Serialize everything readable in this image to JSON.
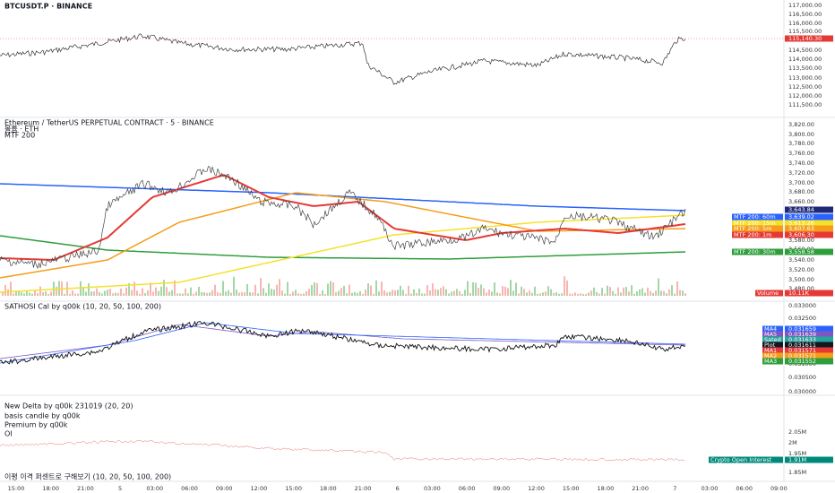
{
  "btc": {
    "title": "BTCUSDT.P · BINANCE",
    "axis": [
      "117,000.00",
      "116,500.00",
      "116,000.00",
      "115,500.00",
      "114,500.00",
      "114,000.00",
      "113,500.00",
      "113,000.00",
      "112,500.00",
      "112,000.00",
      "111,500.00"
    ],
    "price": "115,140.30"
  },
  "eth": {
    "title": "Ethereum / TetherUS PERPETUAL CONTRACT · 5 · BINANCE",
    "subtitle": "볼륨 · ETH",
    "indicator": "MTF 200",
    "axis": [
      "3,820.00",
      "3,800.00",
      "3,780.00",
      "3,760.00",
      "3,740.00",
      "3,720.00",
      "3,700.00",
      "3,680.00",
      "3,660.00",
      "3,580.00",
      "3,560.00",
      "3,540.00",
      "3,520.00",
      "3,500.00",
      "3,480.00"
    ],
    "price": "3,643.84",
    "tags": [
      {
        "label": "MTF 200: 60m",
        "value": "3,639.02",
        "color": "#2962ff"
      },
      {
        "label": "MTF 200: 15m",
        "value": "3,613.26",
        "color": "#f5e12a"
      },
      {
        "label": "MTF 200: 5m",
        "value": "3,607.63",
        "color": "#f59d1a"
      },
      {
        "label": "MTF 200: 1m",
        "value": "3,606.30",
        "color": "#e53935"
      },
      {
        "label": "MTF 200: 30m",
        "value": "3,558.58",
        "color": "#2e9e3a"
      }
    ],
    "volume": {
      "label": "Volume",
      "value": "10.11K"
    }
  },
  "sathosi": {
    "title": "SATHOSI Cal by q00k (10, 20, 50, 100, 200)",
    "axis": [
      "0.033000",
      "0.032500",
      "0.031000",
      "0.030500",
      "0.030000"
    ],
    "tags": [
      {
        "label": "MA4",
        "value": "0.031659",
        "color": "#2962ff"
      },
      {
        "label": "MA5",
        "value": "0.031639",
        "color": "#7e57c2"
      },
      {
        "label": "Sated",
        "value": "0.031633",
        "color": "#26a69a"
      },
      {
        "label": "Plot",
        "value": "0.031611",
        "color": "#131722"
      },
      {
        "label": "MA1",
        "value": "0.031571",
        "color": "#e53935"
      },
      {
        "label": "MA2",
        "value": "0.031571",
        "color": "#f59d1a"
      },
      {
        "label": "MA3",
        "value": "0.031552",
        "color": "#2e9e3a"
      }
    ]
  },
  "oi": {
    "titles": [
      "New Delta by q00k 231019 (20, 20)",
      "basis candle by q00k",
      "Premium by q00k",
      "OI"
    ],
    "axis": [
      "2.05M",
      "2M",
      "1.95M",
      "1.85M"
    ],
    "tag": {
      "label": "Crypto Open Interest",
      "value": "1.91M"
    },
    "footer": "이평 이격 퍼센트로 구해보기 (10, 20, 50, 100, 200)"
  },
  "time_axis": [
    "15:00",
    "18:00",
    "21:00",
    "5",
    "03:00",
    "06:00",
    "09:00",
    "12:00",
    "15:00",
    "18:00",
    "21:00",
    "6",
    "03:00",
    "06:00",
    "09:00",
    "12:00",
    "15:00",
    "18:00",
    "21:00",
    "7",
    "03:00",
    "06:00",
    "09:00"
  ]
}
